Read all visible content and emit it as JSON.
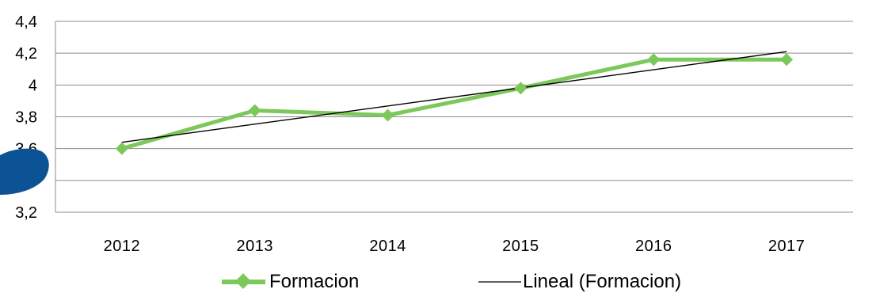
{
  "chart_data": {
    "type": "line",
    "title": "",
    "xlabel": "",
    "ylabel": "",
    "categories": [
      "2012",
      "2013",
      "2014",
      "2015",
      "2016",
      "2017"
    ],
    "y_ticks": [
      "3,2",
      "3,4",
      "3,6",
      "3,8",
      "4",
      "4,2",
      "4,4"
    ],
    "ylim": [
      3.2,
      4.4
    ],
    "grid": true,
    "legend_position": "bottom",
    "series": [
      {
        "name": "Formacion",
        "values": [
          3.6,
          3.84,
          3.81,
          3.98,
          4.16,
          4.16
        ],
        "color": "#7dc85a",
        "marker": "diamond"
      }
    ],
    "trendline": {
      "name": "Lineal (Formacion)",
      "type": "linear",
      "start": 3.64,
      "end": 4.21,
      "color": "#000000"
    }
  }
}
